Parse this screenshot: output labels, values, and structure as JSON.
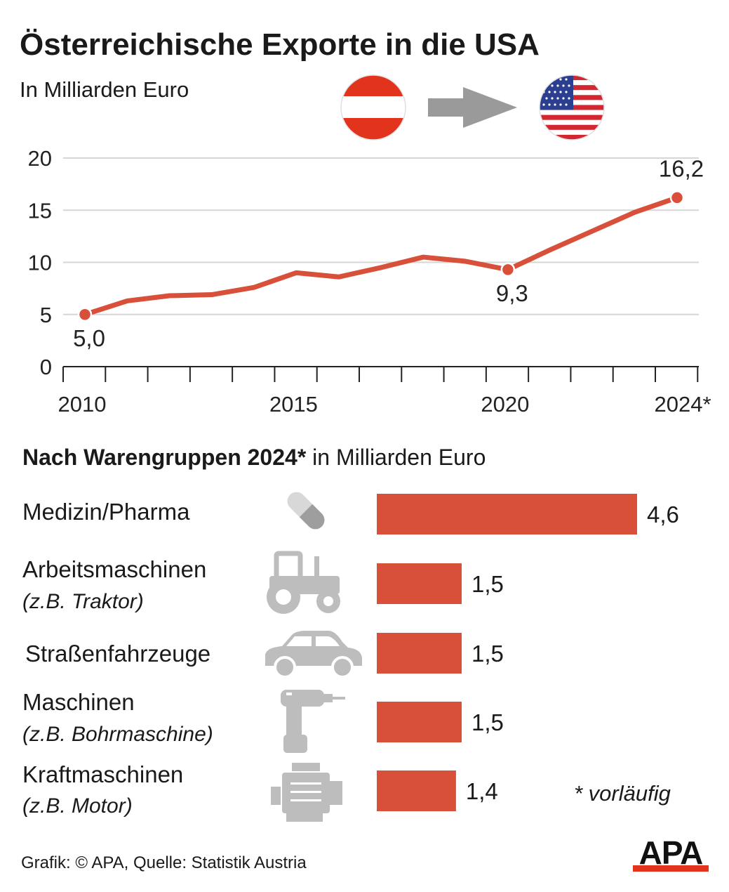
{
  "title": "Österreichische Exporte in die USA",
  "subtitle": "In Milliarden Euro",
  "icons": {
    "austria_flag": "austria-flag-icon",
    "arrow": "arrow-right-icon",
    "usa_flag": "usa-flag-icon"
  },
  "colors": {
    "accent": "#d9503a",
    "axis": "#222222",
    "grid": "#d6d6d6",
    "icon_gray": "#bdbdbd",
    "arrow_gray": "#9a9a9a"
  },
  "chart_data": [
    {
      "type": "line",
      "x": [
        2010,
        2011,
        2012,
        2013,
        2014,
        2015,
        2016,
        2017,
        2018,
        2019,
        2020,
        2021,
        2022,
        2023,
        2024
      ],
      "series": [
        {
          "values": [
            5.0,
            6.3,
            6.8,
            6.9,
            7.6,
            9.0,
            8.6,
            9.5,
            10.5,
            10.1,
            9.3,
            11.2,
            13.0,
            14.8,
            16.2
          ]
        }
      ],
      "ylim": [
        0,
        20
      ],
      "yticks": [
        "0",
        "5",
        "10",
        "15",
        "20"
      ],
      "xtick_labels": [
        {
          "x": 2010,
          "label": "2010"
        },
        {
          "x": 2015,
          "label": "2015"
        },
        {
          "x": 2020,
          "label": "2020"
        },
        {
          "x": 2024,
          "label": "2024*"
        }
      ],
      "point_labels": [
        {
          "x": 2010,
          "label": "5,0",
          "pos": "below"
        },
        {
          "x": 2020,
          "label": "9,3",
          "pos": "below"
        },
        {
          "x": 2024,
          "label": "16,2",
          "pos": "above"
        }
      ],
      "grid": "horizontal"
    },
    {
      "type": "bar",
      "orientation": "horizontal",
      "title_bold": "Nach Warengruppen 2024*",
      "title_rest": " in Milliarden Euro",
      "categories": [
        {
          "label": "Medizin/Pharma",
          "sub": "",
          "icon": "pill-icon"
        },
        {
          "label": "Arbeitsmaschinen",
          "sub": "(z.B. Traktor)",
          "icon": "tractor-icon"
        },
        {
          "label": "Straßenfahrzeuge",
          "sub": "",
          "icon": "car-icon"
        },
        {
          "label": "Maschinen",
          "sub": "(z.B. Bohrmaschine)",
          "icon": "drill-icon"
        },
        {
          "label": "Kraftmaschinen",
          "sub": "(z.B. Motor)",
          "icon": "engine-icon"
        }
      ],
      "values": [
        4.6,
        1.5,
        1.5,
        1.5,
        1.4
      ],
      "value_labels": [
        "4,6",
        "1,5",
        "1,5",
        "1,5",
        "1,4"
      ]
    }
  ],
  "footnote": "* vorläufig",
  "source": "Grafik: © APA, Quelle: Statistik Austria",
  "logo": "APA"
}
